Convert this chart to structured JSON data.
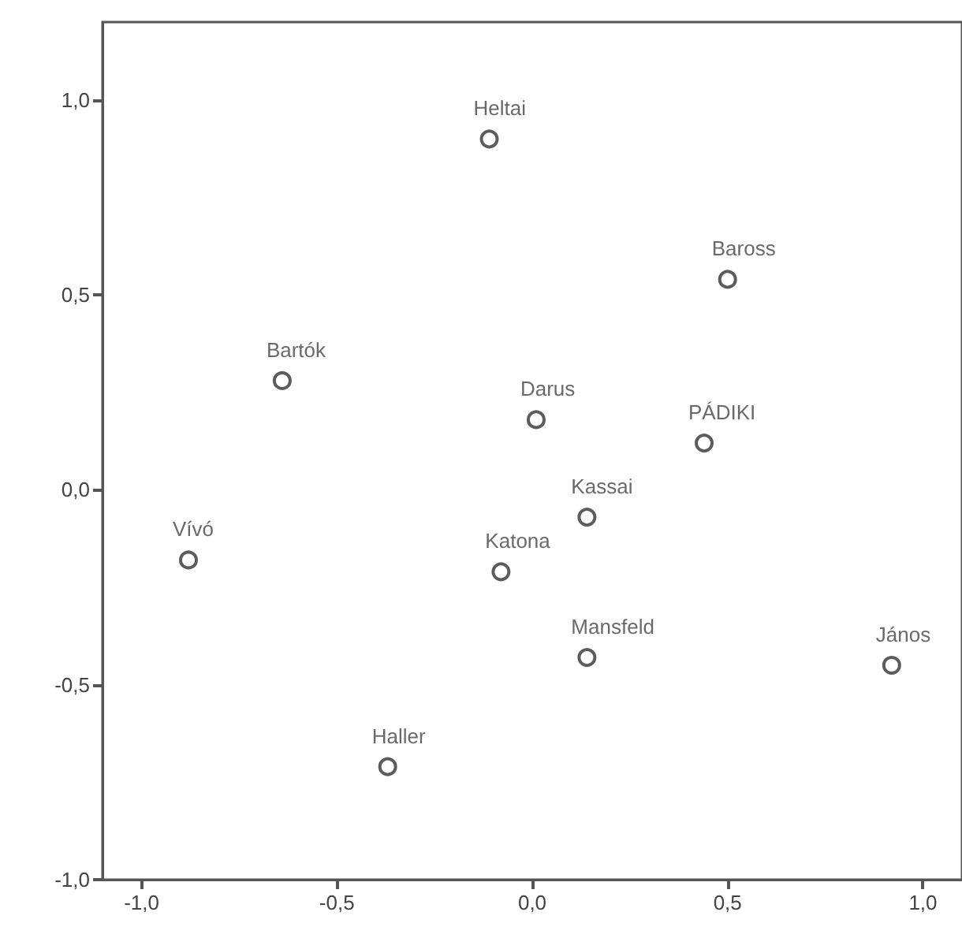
{
  "chart_data": {
    "type": "scatter",
    "xlim": [
      -1.1,
      1.1
    ],
    "ylim": [
      -1,
      1.2
    ],
    "xticks": [
      {
        "value": -1,
        "label": "-1,0"
      },
      {
        "value": -0.5,
        "label": "-0,5"
      },
      {
        "value": 0,
        "label": "0,0"
      },
      {
        "value": 0.5,
        "label": "0,5"
      },
      {
        "value": 1,
        "label": "1,0"
      }
    ],
    "yticks": [
      {
        "value": -1,
        "label": "-1,0"
      },
      {
        "value": -0.5,
        "label": "-0,5"
      },
      {
        "value": 0,
        "label": "0,0"
      },
      {
        "value": 0.5,
        "label": "0,5"
      },
      {
        "value": 1,
        "label": "1,0"
      }
    ],
    "grid": false,
    "legend": false,
    "marker": "circle",
    "series": [
      {
        "name": "Heltai",
        "color": "#333333",
        "x": [
          -0.11
        ],
        "values": [
          0.9
        ]
      },
      {
        "name": "Baross",
        "color": "#333333",
        "x": [
          0.5
        ],
        "values": [
          0.54
        ]
      },
      {
        "name": "Bartók",
        "color": "#333333",
        "x": [
          -0.64
        ],
        "values": [
          0.28
        ]
      },
      {
        "name": "Darus",
        "color": "#333333",
        "x": [
          0.01
        ],
        "values": [
          0.18
        ]
      },
      {
        "name": "PÁDIKI",
        "color": "#333333",
        "x": [
          0.44
        ],
        "values": [
          0.12
        ]
      },
      {
        "name": "Kassai",
        "color": "#333333",
        "x": [
          0.14
        ],
        "values": [
          -0.07
        ]
      },
      {
        "name": "Vívó",
        "color": "#333333",
        "x": [
          -0.88
        ],
        "values": [
          -0.18
        ]
      },
      {
        "name": "Katona",
        "color": "#333333",
        "x": [
          -0.08
        ],
        "values": [
          -0.21
        ]
      },
      {
        "name": "Mansfeld",
        "color": "#333333",
        "x": [
          0.14
        ],
        "values": [
          -0.43
        ]
      },
      {
        "name": "János",
        "color": "#333333",
        "x": [
          0.92
        ],
        "values": [
          -0.45
        ]
      },
      {
        "name": "Haller",
        "color": "#333333",
        "x": [
          -0.37
        ],
        "values": [
          -0.71
        ]
      }
    ]
  }
}
